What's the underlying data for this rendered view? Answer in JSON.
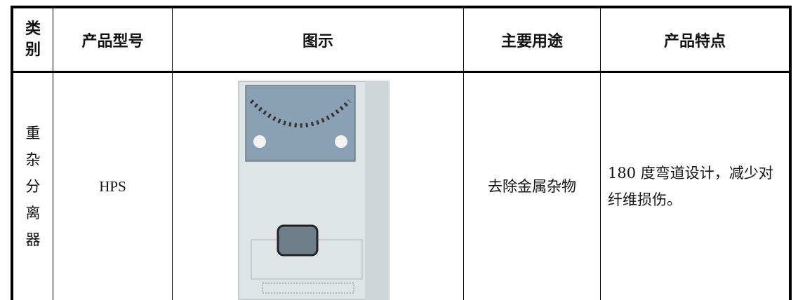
{
  "table": {
    "headers": [
      "类别",
      "产品型号",
      "图示",
      "主要用途",
      "产品特点"
    ],
    "rows": [
      {
        "category": "重杂分离器",
        "model": "HPS",
        "usage": "去除金属杂物",
        "features": "180 度弯道设计，减少对纤维损伤。"
      }
    ]
  }
}
